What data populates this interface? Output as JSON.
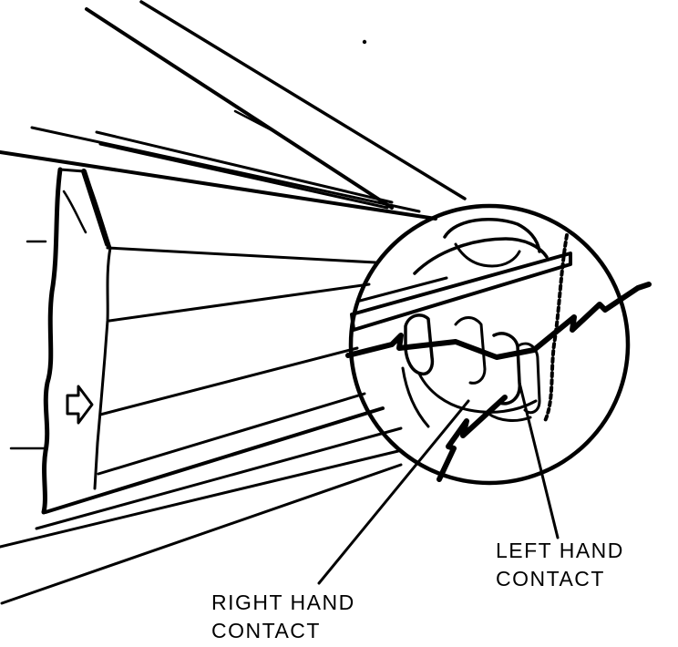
{
  "diagram": {
    "colors": {
      "ink": "#000000",
      "background": "#ffffff"
    },
    "labels": {
      "left_hand_contact": [
        "LEFT HAND",
        "CONTACT"
      ],
      "right_hand_contact": [
        "RIGHT HAND",
        "CONTACT"
      ]
    }
  }
}
